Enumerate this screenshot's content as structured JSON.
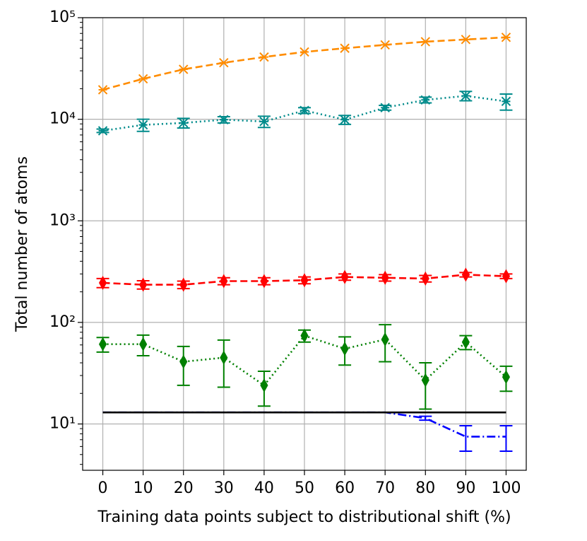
{
  "chart_data": {
    "type": "line",
    "x_label": "Training data points subject to distributional shift (%)",
    "y_label": "Total number of atoms",
    "x": [
      0,
      10,
      20,
      30,
      40,
      50,
      60,
      70,
      80,
      90,
      100
    ],
    "xlim": [
      -5,
      105
    ],
    "xticks": [
      0,
      10,
      20,
      30,
      40,
      50,
      60,
      70,
      80,
      90,
      100
    ],
    "ylim": [
      3.5,
      100000
    ],
    "log_y": true,
    "grid": true,
    "yticks": [
      {
        "value": 10,
        "label": "10¹"
      },
      {
        "value": 100,
        "label": "10²"
      },
      {
        "value": 1000,
        "label": "10³"
      },
      {
        "value": 10000,
        "label": "10⁴"
      },
      {
        "value": 100000,
        "label": "10⁵"
      }
    ],
    "series": [
      {
        "color": "#ff8c00",
        "linestyle": "dashed",
        "marker": "x",
        "values": [
          19500,
          25000,
          31000,
          36000,
          41000,
          46000,
          50000,
          54000,
          58000,
          61000,
          64000
        ]
      },
      {
        "color": "#008b8b",
        "linestyle": "dotted",
        "marker": "x",
        "values": [
          7700,
          8800,
          9200,
          9900,
          9500,
          12200,
          9900,
          13000,
          15500,
          17000,
          15000
        ],
        "errors": [
          300,
          1200,
          1000,
          700,
          1200,
          800,
          1000,
          700,
          1000,
          1800,
          2700
        ]
      },
      {
        "color": "#ff0000",
        "linestyle": "dashed",
        "marker": "d",
        "values": [
          245,
          235,
          235,
          255,
          255,
          260,
          280,
          275,
          270,
          295,
          285
        ],
        "errors": [
          25,
          22,
          20,
          20,
          20,
          20,
          20,
          20,
          20,
          15,
          15
        ]
      },
      {
        "color": "#008000",
        "linestyle": "dotted",
        "marker": "d",
        "values": [
          61,
          61,
          41,
          45,
          24,
          74,
          55,
          68,
          27,
          64,
          29
        ],
        "errors": [
          10,
          14,
          17,
          22,
          9,
          10,
          17,
          27,
          13,
          10,
          8
        ]
      },
      {
        "color": "#0000ff",
        "linestyle": "dashdot",
        "marker": "none",
        "values": [
          13,
          13,
          13,
          13,
          13,
          13,
          13,
          13,
          11.4,
          7.5,
          7.5
        ],
        "errors": [
          0,
          0,
          0,
          0,
          0,
          0,
          0,
          0,
          0.5,
          2.1,
          2.1
        ]
      },
      {
        "color": "#000000",
        "linestyle": "solid",
        "marker": "none",
        "values": [
          13,
          13,
          13,
          13,
          13,
          13,
          13,
          13,
          13,
          13,
          13
        ]
      }
    ]
  }
}
